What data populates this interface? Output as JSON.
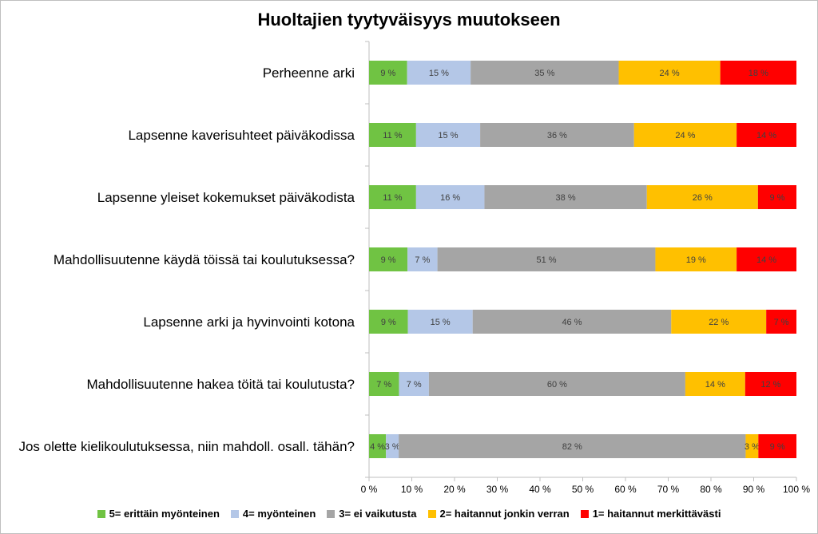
{
  "chart_data": {
    "type": "bar",
    "orientation": "horizontal",
    "stacked": true,
    "title": "Huoltajien tyytyväisyys muutokseen",
    "categories": [
      "Perheenne arki",
      "Lapsenne kaverisuhteet päiväkodissa",
      "Lapsenne yleiset kokemukset päiväkodista",
      "Mahdollisuutenne käydä töissä tai koulutuksessa?",
      "Lapsenne arki ja hyvinvointi kotona",
      "Mahdollisuutenne hakea töitä tai koulutusta?",
      "Jos olette kielikoulutuksessa, niin mahdoll. osall. tähän?"
    ],
    "series": [
      {
        "name": "5= erittäin myönteinen",
        "color": "#70c343",
        "values": [
          9,
          11,
          11,
          9,
          9,
          7,
          4
        ]
      },
      {
        "name": "4= myönteinen",
        "color": "#b4c7e7",
        "values": [
          15,
          15,
          16,
          7,
          15,
          7,
          3
        ]
      },
      {
        "name": "3= ei vaikutusta",
        "color": "#a5a5a5",
        "values": [
          35,
          36,
          38,
          51,
          46,
          60,
          82
        ]
      },
      {
        "name": "2= haitannut jonkin verran",
        "color": "#ffc000",
        "values": [
          24,
          24,
          26,
          19,
          22,
          14,
          3
        ]
      },
      {
        "name": "1= haitannut merkittävästi",
        "color": "#ff0000",
        "values": [
          18,
          14,
          9,
          14,
          7,
          12,
          9
        ]
      }
    ],
    "x_ticks": [
      "0 %",
      "10 %",
      "20 %",
      "30 %",
      "40 %",
      "50 %",
      "60 %",
      "70 %",
      "80 %",
      "90 %",
      "100 %"
    ],
    "xlim": [
      0,
      100
    ],
    "legend_position": "bottom",
    "grid": false
  }
}
